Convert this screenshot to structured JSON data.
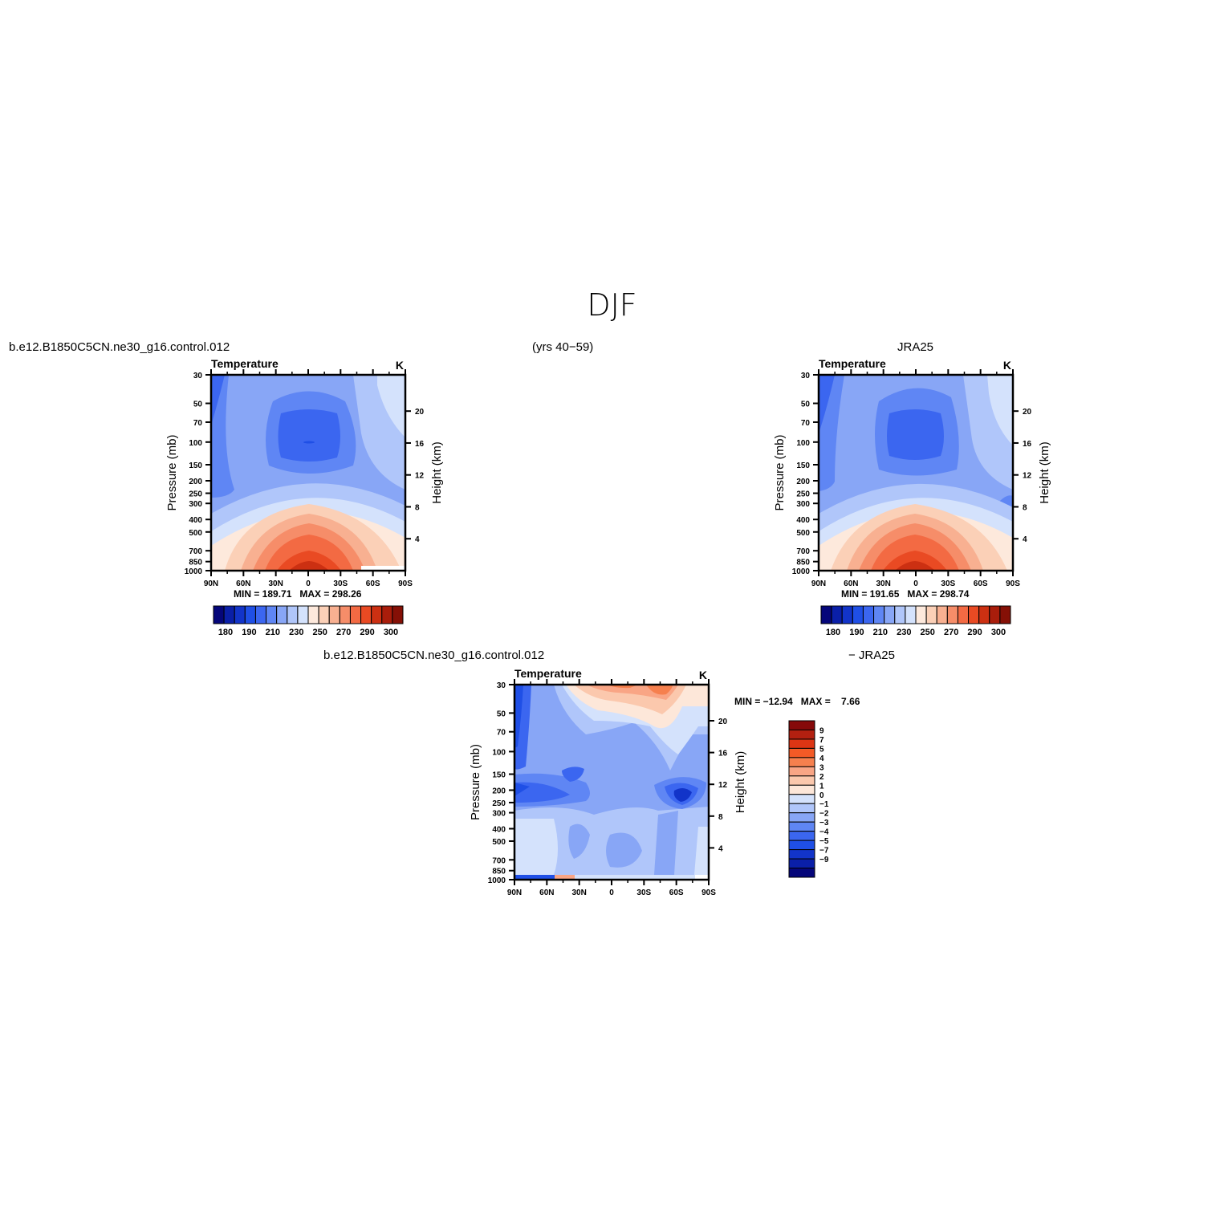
{
  "page": {
    "title": "DJF",
    "left_case": "b.e12.B1850C5CN.ne30_g16.control.012",
    "years": "(yrs 40−59)",
    "right_case": "JRA25",
    "diff_case_left": "b.e12.B1850C5CN.ne30_g16.control.012",
    "diff_case_right": "− JRA25"
  },
  "chart_data": [
    {
      "id": "model",
      "type": "heatmap",
      "title": "Temperature",
      "units": "K",
      "xlabel": "",
      "ylabel": "Pressure (mb)",
      "ylabel_right": "Height (km)",
      "x_ticks": [
        "90N",
        "60N",
        "30N",
        "0",
        "30S",
        "60S",
        "90S"
      ],
      "x_values": [
        90,
        60,
        30,
        0,
        -30,
        -60,
        -90
      ],
      "y_ticks": [
        30,
        50,
        70,
        100,
        150,
        200,
        250,
        300,
        400,
        500,
        700,
        850,
        1000
      ],
      "y_range": [
        1000,
        30
      ],
      "y_scale": "log",
      "height_ticks": [
        4,
        8,
        12,
        16,
        20
      ],
      "stats": "MIN = 189.71   MAX = 298.26",
      "min": 189.71,
      "max": 298.26,
      "colorbar_levels": [
        175,
        180,
        185,
        190,
        195,
        200,
        205,
        210,
        215,
        220,
        225,
        230,
        235,
        240,
        245,
        250,
        255,
        260,
        265,
        270,
        275,
        280,
        285,
        290,
        295,
        300
      ],
      "colorbar_labels": [
        "180",
        "190",
        "210",
        "230",
        "250",
        "270",
        "290",
        "300"
      ]
    },
    {
      "id": "obs",
      "type": "heatmap",
      "title": "Temperature",
      "units": "K",
      "xlabel": "",
      "ylabel": "Pressure (mb)",
      "ylabel_right": "Height (km)",
      "x_ticks": [
        "90N",
        "60N",
        "30N",
        "0",
        "30S",
        "60S",
        "90S"
      ],
      "x_values": [
        90,
        60,
        30,
        0,
        -30,
        -60,
        -90
      ],
      "y_ticks": [
        30,
        50,
        70,
        100,
        150,
        200,
        250,
        300,
        400,
        500,
        700,
        850,
        1000
      ],
      "y_range": [
        1000,
        30
      ],
      "y_scale": "log",
      "height_ticks": [
        4,
        8,
        12,
        16,
        20
      ],
      "stats": "MIN = 191.65   MAX = 298.74",
      "min": 191.65,
      "max": 298.74,
      "colorbar_labels": [
        "180",
        "190",
        "210",
        "230",
        "250",
        "270",
        "290",
        "300"
      ]
    },
    {
      "id": "diff",
      "type": "heatmap",
      "title": "Temperature",
      "units": "K",
      "xlabel": "",
      "ylabel": "Pressure (mb)",
      "ylabel_right": "Height (km)",
      "x_ticks": [
        "90N",
        "60N",
        "30N",
        "0",
        "30S",
        "60S",
        "90S"
      ],
      "x_values": [
        90,
        60,
        30,
        0,
        -30,
        -60,
        -90
      ],
      "y_ticks": [
        30,
        50,
        70,
        100,
        150,
        200,
        250,
        300,
        400,
        500,
        700,
        850,
        1000
      ],
      "y_range": [
        1000,
        30
      ],
      "y_scale": "log",
      "height_ticks": [
        4,
        8,
        12,
        16,
        20
      ],
      "stats": "MIN = −12.94   MAX =    7.66",
      "min": -12.94,
      "max": 7.66,
      "colorbar_labels": [
        "9",
        "7",
        "5",
        "4",
        "3",
        "2",
        "1",
        "0",
        "−1",
        "−2",
        "−3",
        "−4",
        "−5",
        "−7",
        "−9"
      ]
    }
  ],
  "colors": {
    "abs_palette": [
      "#05067a",
      "#0a1fa8",
      "#1234c9",
      "#1f4fe6",
      "#3b66f0",
      "#5f86f4",
      "#88a6f6",
      "#b0c6fa",
      "#d4e2fc",
      "#fde9dc",
      "#fbd0b7",
      "#f8b091",
      "#f68d69",
      "#f36a43",
      "#e94a23",
      "#cc3012",
      "#a91d0b",
      "#851006"
    ],
    "diff_palette": [
      "#86090a",
      "#b32010",
      "#dc3514",
      "#f35a26",
      "#f6804e",
      "#f9a585",
      "#fbc8ad",
      "#fde7d9",
      "#d4e2fc",
      "#b0c6fa",
      "#88a6f6",
      "#5f86f4",
      "#3b66f0",
      "#1f4fe6",
      "#1234c9",
      "#0a1fa8",
      "#05067a"
    ]
  }
}
